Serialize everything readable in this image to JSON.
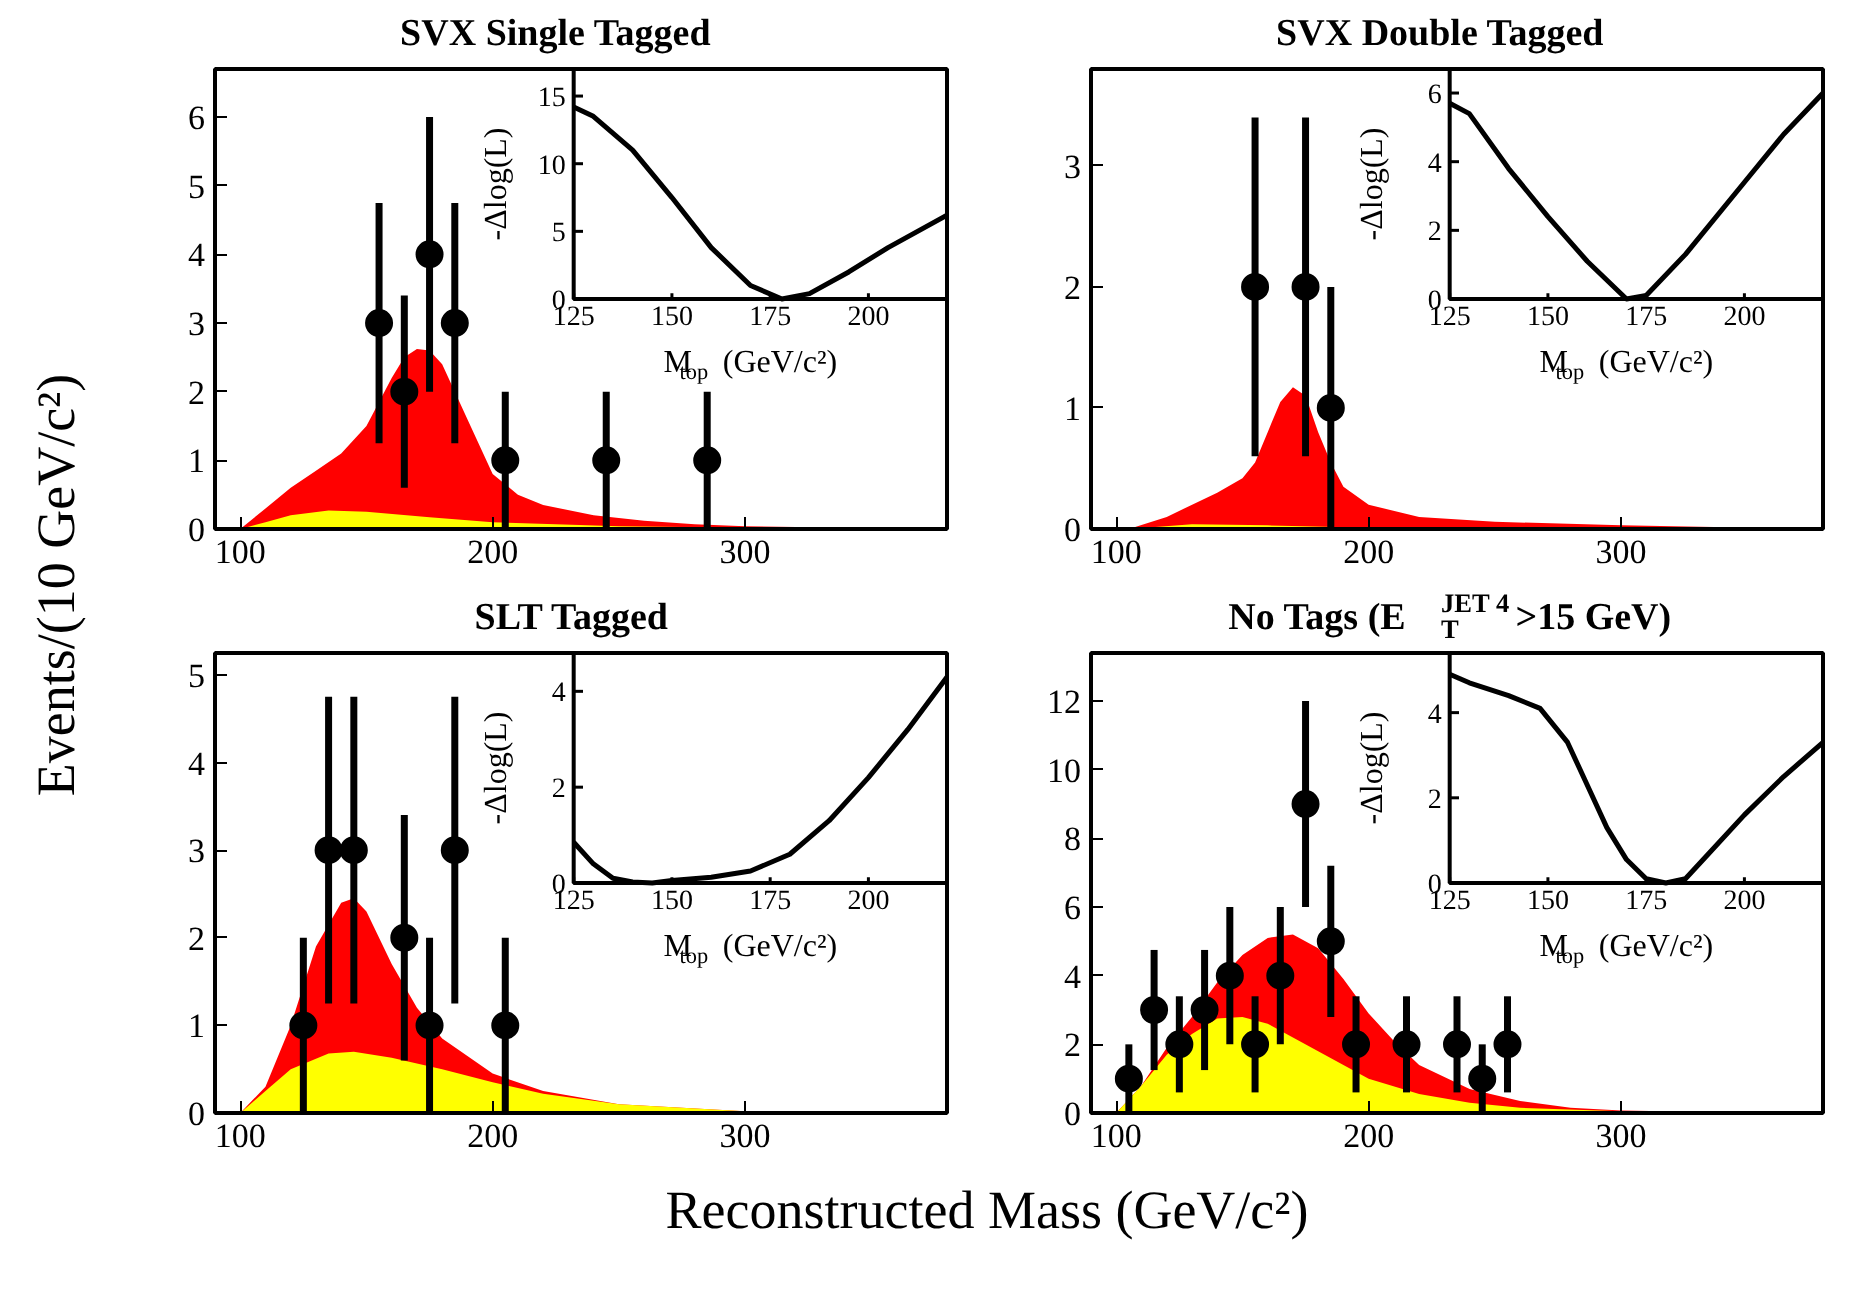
{
  "chart_data": [
    {
      "type": "scatter",
      "title": "SVX Single Tagged",
      "ylabel": "Events/(10 GeV/c²)",
      "xlabel": "Reconstructed Mass (GeV/c²)",
      "xlim": [
        90,
        380
      ],
      "xticks": [
        100,
        200,
        300
      ],
      "ylim": [
        0,
        6.7
      ],
      "yticks": [
        0,
        1,
        2,
        3,
        4,
        5,
        6
      ],
      "series": [
        {
          "type": "area",
          "color": "#ff0000",
          "x": [
            100,
            110,
            120,
            130,
            140,
            150,
            160,
            165,
            170,
            175,
            180,
            185,
            190,
            200,
            210,
            220,
            240,
            260,
            280,
            300,
            340,
            380
          ],
          "values": [
            0,
            0.3,
            0.6,
            0.85,
            1.1,
            1.5,
            2.2,
            2.5,
            2.62,
            2.6,
            2.4,
            2.0,
            1.6,
            0.8,
            0.5,
            0.35,
            0.2,
            0.12,
            0.07,
            0.04,
            0.02,
            0.01
          ]
        },
        {
          "type": "area",
          "color": "#ffff00",
          "x": [
            100,
            110,
            120,
            135,
            150,
            175,
            200,
            250,
            300,
            380
          ],
          "values": [
            0,
            0.1,
            0.2,
            0.27,
            0.25,
            0.17,
            0.1,
            0.04,
            0.02,
            0
          ]
        },
        {
          "type": "scatter",
          "marker": "circle",
          "color": "#000000",
          "x": [
            155,
            165,
            175,
            185,
            205,
            245,
            285
          ],
          "values": [
            3,
            2,
            4,
            3,
            1,
            1,
            1
          ],
          "errors": [
            [
              1.25,
              4.75
            ],
            [
              0.6,
              3.4
            ],
            [
              2,
              6
            ],
            [
              1.25,
              4.75
            ],
            [
              0,
              2
            ],
            [
              0,
              2
            ],
            [
              0,
              2
            ]
          ]
        }
      ]
    },
    {
      "type": "line",
      "xlabel": "M$_{top}$ (GeV/c²)",
      "ylabel": "-Δlog(L)",
      "xlim": [
        125,
        220
      ],
      "xticks": [
        125,
        150,
        175,
        200
      ],
      "ylim": [
        0,
        17
      ],
      "yticks": [
        0,
        5,
        10,
        15
      ],
      "series": [
        {
          "color": "#000000",
          "x": [
            125,
            130,
            140,
            150,
            160,
            170,
            178,
            185,
            195,
            205,
            220
          ],
          "values": [
            14.2,
            13.5,
            11,
            7.5,
            3.8,
            1,
            0,
            0.4,
            2,
            3.8,
            6.2
          ]
        }
      ]
    },
    {
      "type": "scatter",
      "title": "SVX Double Tagged",
      "xlim": [
        90,
        380
      ],
      "xticks": [
        100,
        200,
        300
      ],
      "ylim": [
        0,
        3.8
      ],
      "yticks": [
        0,
        1,
        2,
        3
      ],
      "series": [
        {
          "type": "area",
          "color": "#ff0000",
          "x": [
            105,
            120,
            140,
            150,
            155,
            160,
            165,
            170,
            175,
            180,
            185,
            190,
            200,
            220,
            250,
            300,
            380
          ],
          "values": [
            0,
            0.1,
            0.3,
            0.42,
            0.55,
            0.8,
            1.05,
            1.17,
            1.1,
            0.8,
            0.55,
            0.35,
            0.2,
            0.1,
            0.06,
            0.03,
            0
          ]
        },
        {
          "type": "area",
          "color": "#ffff00",
          "x": [
            105,
            130,
            160,
            200,
            380
          ],
          "values": [
            0,
            0.04,
            0.03,
            0.01,
            0
          ]
        },
        {
          "type": "scatter",
          "marker": "circle",
          "color": "#000000",
          "x": [
            155,
            175,
            185
          ],
          "values": [
            2,
            2,
            1
          ],
          "errors": [
            [
              0.6,
              3.4
            ],
            [
              0.6,
              3.4
            ],
            [
              0,
              2
            ]
          ]
        }
      ]
    },
    {
      "type": "line",
      "xlabel": "M$_{top}$ (GeV/c²)",
      "ylabel": "-Δlog(L)",
      "xlim": [
        125,
        220
      ],
      "xticks": [
        125,
        150,
        175,
        200
      ],
      "ylim": [
        0,
        6.7
      ],
      "yticks": [
        0,
        2,
        4,
        6
      ],
      "series": [
        {
          "color": "#000000",
          "x": [
            125,
            130,
            140,
            150,
            160,
            170,
            175,
            185,
            200,
            210,
            220
          ],
          "values": [
            5.7,
            5.4,
            3.8,
            2.4,
            1.1,
            0,
            0.1,
            1.3,
            3.4,
            4.8,
            6.0
          ]
        }
      ]
    },
    {
      "type": "scatter",
      "title": "SLT Tagged",
      "xlim": [
        90,
        380
      ],
      "xticks": [
        100,
        200,
        300
      ],
      "ylim": [
        0,
        5.25
      ],
      "yticks": [
        0,
        1,
        2,
        3,
        4,
        5
      ],
      "series": [
        {
          "type": "area",
          "color": "#ff0000",
          "x": [
            100,
            110,
            120,
            130,
            140,
            145,
            150,
            160,
            170,
            180,
            190,
            200,
            220,
            250,
            300,
            380
          ],
          "values": [
            0,
            0.3,
            1.0,
            1.9,
            2.4,
            2.45,
            2.3,
            1.7,
            1.2,
            0.85,
            0.65,
            0.45,
            0.25,
            0.1,
            0.02,
            0
          ]
        },
        {
          "type": "area",
          "color": "#ffff00",
          "x": [
            100,
            110,
            120,
            135,
            145,
            160,
            180,
            200,
            220,
            250,
            300,
            380
          ],
          "values": [
            0,
            0.25,
            0.5,
            0.68,
            0.7,
            0.63,
            0.5,
            0.35,
            0.22,
            0.1,
            0.02,
            0
          ]
        },
        {
          "type": "scatter",
          "marker": "circle",
          "color": "#000000",
          "x": [
            125,
            135,
            145,
            165,
            175,
            185,
            205
          ],
          "values": [
            1,
            3,
            3,
            2,
            1,
            3,
            1
          ],
          "errors": [
            [
              0,
              2
            ],
            [
              1.25,
              4.75
            ],
            [
              1.25,
              4.75
            ],
            [
              0.6,
              3.4
            ],
            [
              0,
              2
            ],
            [
              1.25,
              4.75
            ],
            [
              0,
              2
            ]
          ]
        }
      ]
    },
    {
      "type": "line",
      "xlabel": "M$_{top}$ (GeV/c²)",
      "ylabel": "-Δlog(L)",
      "xlim": [
        125,
        220
      ],
      "xticks": [
        125,
        150,
        175,
        200
      ],
      "ylim": [
        0,
        4.8
      ],
      "yticks": [
        0,
        2,
        4
      ],
      "series": [
        {
          "color": "#000000",
          "x": [
            125,
            130,
            135,
            140,
            145,
            150,
            160,
            170,
            180,
            190,
            200,
            210,
            220
          ],
          "values": [
            0.85,
            0.4,
            0.1,
            0.02,
            0,
            0.05,
            0.12,
            0.25,
            0.6,
            1.3,
            2.2,
            3.2,
            4.3
          ]
        }
      ]
    },
    {
      "type": "scatter",
      "title": "No Tags (E$_{T}$$^{JET 4}$>15 GeV)",
      "xlim": [
        90,
        380
      ],
      "xticks": [
        100,
        200,
        300
      ],
      "ylim": [
        0,
        13.4
      ],
      "yticks": [
        0,
        2,
        4,
        6,
        8,
        10,
        12
      ],
      "series": [
        {
          "type": "area",
          "color": "#ff0000",
          "x": [
            100,
            110,
            120,
            130,
            140,
            150,
            160,
            170,
            180,
            190,
            200,
            210,
            220,
            240,
            260,
            280,
            300,
            340,
            380
          ],
          "values": [
            0,
            0.8,
            1.9,
            2.8,
            3.8,
            4.6,
            5.1,
            5.2,
            4.8,
            3.9,
            2.9,
            2.1,
            1.4,
            0.7,
            0.35,
            0.15,
            0.07,
            0.02,
            0
          ]
        },
        {
          "type": "area",
          "color": "#ffff00",
          "x": [
            100,
            110,
            120,
            130,
            140,
            150,
            160,
            170,
            180,
            190,
            200,
            220,
            240,
            260,
            300,
            380
          ],
          "values": [
            0,
            0.8,
            1.7,
            2.3,
            2.75,
            2.8,
            2.6,
            2.2,
            1.8,
            1.4,
            1.0,
            0.55,
            0.3,
            0.15,
            0.05,
            0
          ]
        },
        {
          "type": "scatter",
          "marker": "circle",
          "color": "#000000",
          "x": [
            105,
            115,
            125,
            135,
            145,
            155,
            165,
            175,
            185,
            195,
            215,
            235,
            245,
            255
          ],
          "values": [
            1,
            3,
            2,
            3,
            4,
            2,
            4,
            9,
            5,
            2,
            2,
            2,
            1,
            2
          ],
          "errors": [
            [
              0,
              2
            ],
            [
              1.25,
              4.75
            ],
            [
              0.6,
              3.4
            ],
            [
              1.25,
              4.75
            ],
            [
              2,
              6
            ],
            [
              0.6,
              3.4
            ],
            [
              2,
              6
            ],
            [
              6,
              12
            ],
            [
              2.8,
              7.2
            ],
            [
              0.6,
              3.4
            ],
            [
              0.6,
              3.4
            ],
            [
              0.6,
              3.4
            ],
            [
              0,
              2
            ],
            [
              0.6,
              3.4
            ]
          ]
        }
      ]
    },
    {
      "type": "line",
      "xlabel": "M$_{top}$ (GeV/c²)",
      "ylabel": "-Δlog(L)",
      "xlim": [
        125,
        220
      ],
      "xticks": [
        125,
        150,
        175,
        200
      ],
      "ylim": [
        0,
        5.4
      ],
      "yticks": [
        0,
        2,
        4
      ],
      "series": [
        {
          "color": "#000000",
          "x": [
            125,
            130,
            140,
            148,
            155,
            160,
            165,
            170,
            175,
            180,
            185,
            190,
            200,
            210,
            220
          ],
          "values": [
            4.9,
            4.7,
            4.4,
            4.1,
            3.3,
            2.3,
            1.3,
            0.55,
            0.1,
            0,
            0.1,
            0.6,
            1.6,
            2.5,
            3.3
          ]
        }
      ]
    }
  ]
}
